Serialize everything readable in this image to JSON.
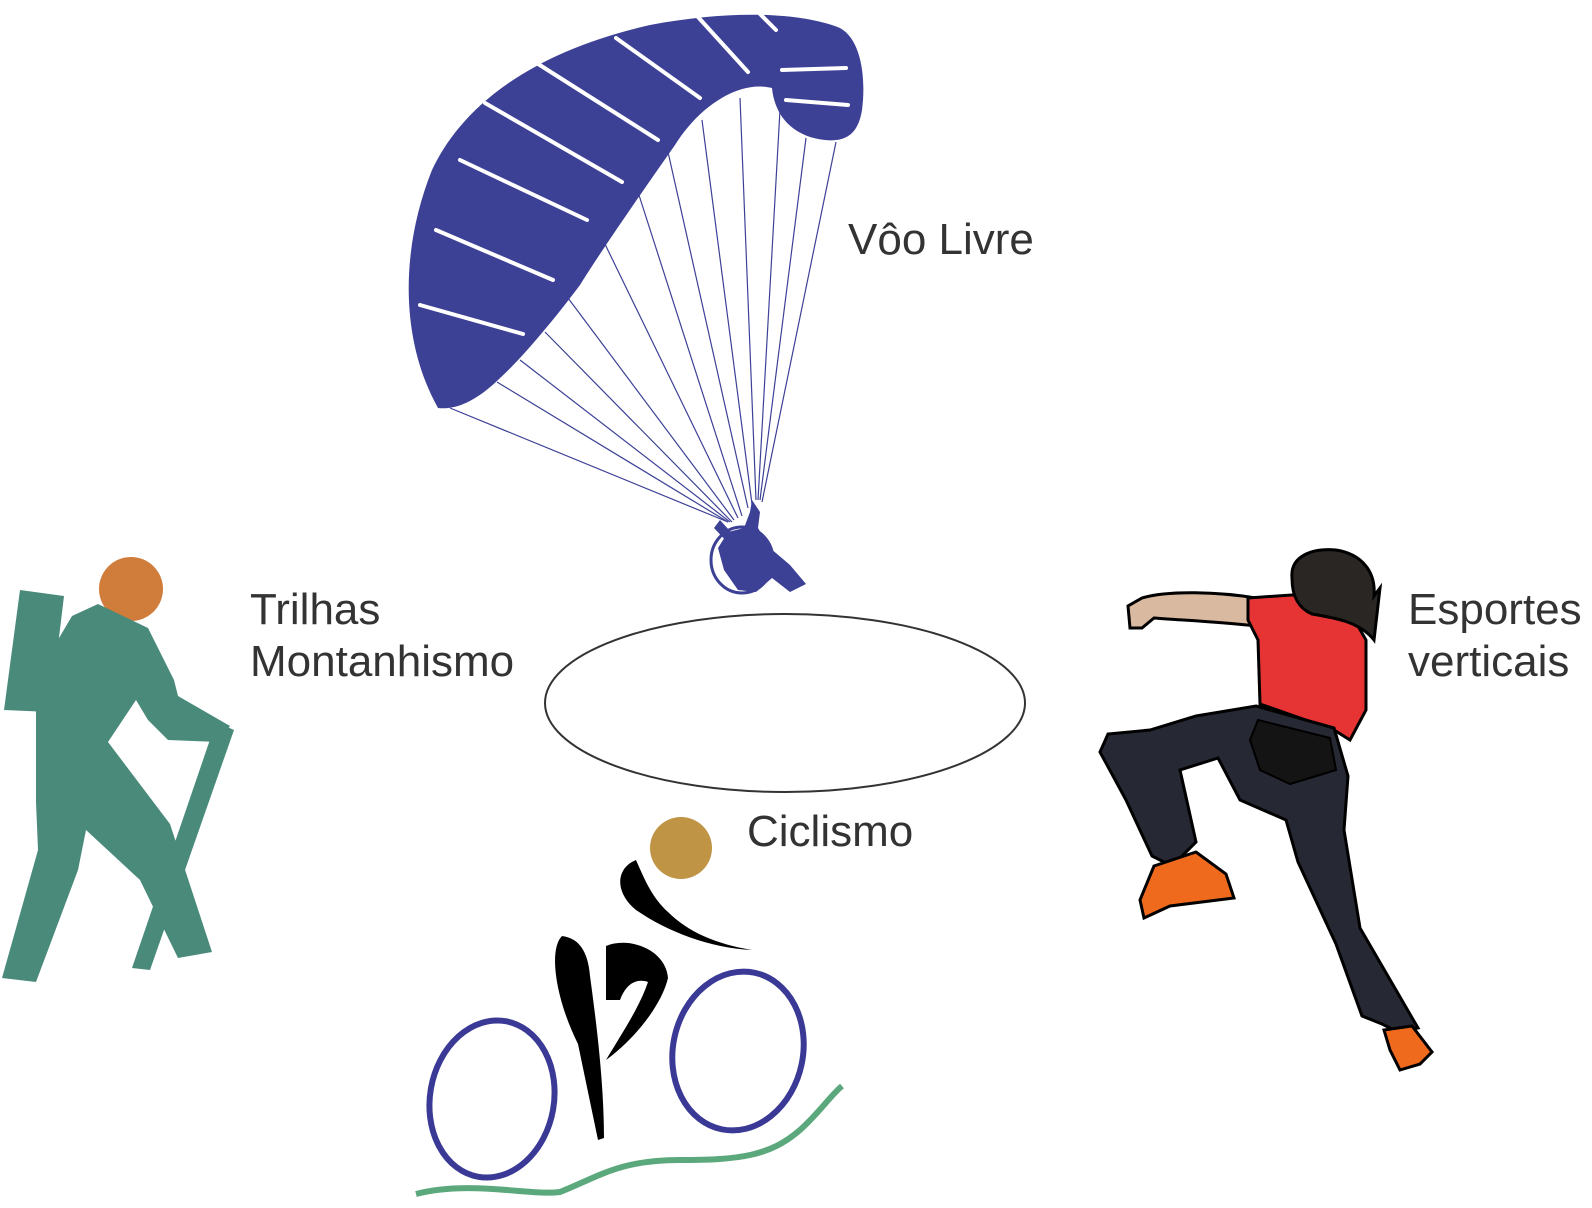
{
  "labels": {
    "voo_livre": "Vôo Livre",
    "trilhas_line1": "Trilhas",
    "trilhas_line2": "Montanhismo",
    "esportes_line1": "Esportes",
    "esportes_line2": "verticais",
    "ciclismo": "Ciclismo"
  },
  "colors": {
    "paraglider": "#3d4196",
    "hiker_body": "#4a8a7b",
    "hiker_head": "#d07c3a",
    "cyclist_head": "#bf9444",
    "cyclist_body": "#000000",
    "bike_wheels": "#3a3a96",
    "ground_line": "#5aa87c",
    "climber_shirt": "#e63434",
    "climber_pants": "#262833",
    "climber_skin": "#d9b9a0",
    "climber_shoes": "#f06a1d",
    "center_ellipse": "#333333",
    "text": "#333333"
  },
  "icons": [
    "paraglider-icon",
    "hiker-icon",
    "cyclist-icon",
    "climber-icon"
  ]
}
